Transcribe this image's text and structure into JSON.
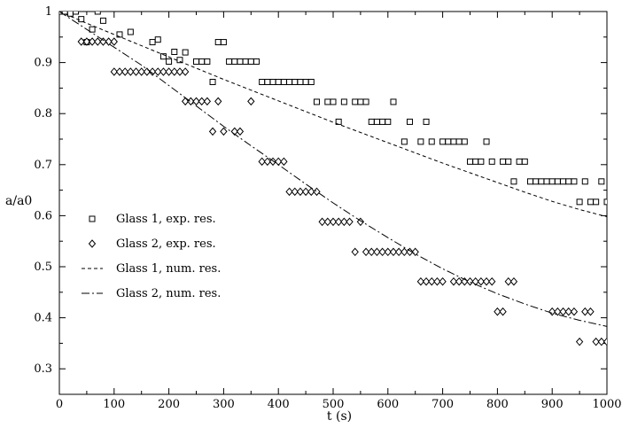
{
  "chart_data": {
    "type": "scatter",
    "xlabel": "t (s)",
    "ylabel": "a/a0",
    "xlim": [
      0,
      1000
    ],
    "ylim": [
      0.25,
      1.0
    ],
    "x_ticks": [
      0,
      100,
      200,
      300,
      400,
      500,
      600,
      700,
      800,
      900,
      1000
    ],
    "y_ticks": [
      0.3,
      0.4,
      0.5,
      0.6,
      0.7,
      0.8,
      0.9,
      1.0
    ],
    "x_tick_labels": [
      "0",
      "100",
      "200",
      "300",
      "400",
      "500",
      "600",
      "700",
      "800",
      "900",
      "1000"
    ],
    "y_tick_labels": [
      "0.3",
      "0.4",
      "0.5",
      "0.6",
      "0.7",
      "0.8",
      "0.9",
      "1"
    ],
    "grid": false,
    "legend_position": "left",
    "series": [
      {
        "name": "Glass 1, exp. res.",
        "kind": "markers",
        "marker": "square",
        "points": [
          [
            0,
            1.0
          ],
          [
            10,
            1.0
          ],
          [
            20,
            0.996
          ],
          [
            30,
            1.0
          ],
          [
            40,
            0.985
          ],
          [
            50,
            0.94
          ],
          [
            60,
            0.965
          ],
          [
            70,
            1.0
          ],
          [
            80,
            0.982
          ],
          [
            110,
            0.955
          ],
          [
            130,
            0.96
          ],
          [
            170,
            0.94
          ],
          [
            180,
            0.945
          ],
          [
            190,
            0.912
          ],
          [
            200,
            0.902
          ],
          [
            210,
            0.921
          ],
          [
            220,
            0.905
          ],
          [
            230,
            0.92
          ],
          [
            250,
            0.902
          ],
          [
            260,
            0.902
          ],
          [
            270,
            0.902
          ],
          [
            280,
            0.862
          ],
          [
            290,
            0.94
          ],
          [
            300,
            0.94
          ],
          [
            310,
            0.902
          ],
          [
            320,
            0.902
          ],
          [
            330,
            0.902
          ],
          [
            340,
            0.902
          ],
          [
            350,
            0.902
          ],
          [
            360,
            0.902
          ],
          [
            370,
            0.862
          ],
          [
            380,
            0.862
          ],
          [
            390,
            0.862
          ],
          [
            400,
            0.862
          ],
          [
            410,
            0.862
          ],
          [
            420,
            0.862
          ],
          [
            430,
            0.862
          ],
          [
            440,
            0.862
          ],
          [
            450,
            0.862
          ],
          [
            460,
            0.862
          ],
          [
            470,
            0.823
          ],
          [
            490,
            0.823
          ],
          [
            500,
            0.823
          ],
          [
            510,
            0.784
          ],
          [
            520,
            0.823
          ],
          [
            540,
            0.823
          ],
          [
            550,
            0.823
          ],
          [
            560,
            0.823
          ],
          [
            570,
            0.784
          ],
          [
            580,
            0.784
          ],
          [
            590,
            0.784
          ],
          [
            600,
            0.784
          ],
          [
            610,
            0.823
          ],
          [
            630,
            0.745
          ],
          [
            640,
            0.784
          ],
          [
            660,
            0.745
          ],
          [
            670,
            0.784
          ],
          [
            680,
            0.745
          ],
          [
            700,
            0.745
          ],
          [
            710,
            0.745
          ],
          [
            720,
            0.745
          ],
          [
            730,
            0.745
          ],
          [
            740,
            0.745
          ],
          [
            750,
            0.706
          ],
          [
            760,
            0.706
          ],
          [
            770,
            0.706
          ],
          [
            780,
            0.745
          ],
          [
            790,
            0.706
          ],
          [
            810,
            0.706
          ],
          [
            820,
            0.706
          ],
          [
            830,
            0.667
          ],
          [
            840,
            0.706
          ],
          [
            850,
            0.706
          ],
          [
            860,
            0.667
          ],
          [
            870,
            0.667
          ],
          [
            880,
            0.667
          ],
          [
            890,
            0.667
          ],
          [
            900,
            0.667
          ],
          [
            910,
            0.667
          ],
          [
            920,
            0.667
          ],
          [
            930,
            0.667
          ],
          [
            940,
            0.667
          ],
          [
            950,
            0.627
          ],
          [
            960,
            0.667
          ],
          [
            970,
            0.627
          ],
          [
            980,
            0.627
          ],
          [
            990,
            0.667
          ],
          [
            1000,
            0.627
          ]
        ]
      },
      {
        "name": "Glass 2, exp. res.",
        "kind": "markers",
        "marker": "diamond",
        "points": [
          [
            40,
            0.941
          ],
          [
            50,
            0.941
          ],
          [
            60,
            0.941
          ],
          [
            70,
            0.941
          ],
          [
            80,
            0.941
          ],
          [
            90,
            0.941
          ],
          [
            100,
            0.941
          ],
          [
            100,
            0.882
          ],
          [
            110,
            0.882
          ],
          [
            120,
            0.882
          ],
          [
            130,
            0.882
          ],
          [
            140,
            0.882
          ],
          [
            150,
            0.882
          ],
          [
            160,
            0.882
          ],
          [
            170,
            0.882
          ],
          [
            180,
            0.882
          ],
          [
            190,
            0.882
          ],
          [
            200,
            0.882
          ],
          [
            210,
            0.882
          ],
          [
            220,
            0.882
          ],
          [
            230,
            0.882
          ],
          [
            230,
            0.824
          ],
          [
            240,
            0.824
          ],
          [
            250,
            0.824
          ],
          [
            260,
            0.824
          ],
          [
            270,
            0.824
          ],
          [
            280,
            0.765
          ],
          [
            290,
            0.824
          ],
          [
            300,
            0.765
          ],
          [
            320,
            0.765
          ],
          [
            330,
            0.765
          ],
          [
            350,
            0.824
          ],
          [
            370,
            0.706
          ],
          [
            380,
            0.706
          ],
          [
            390,
            0.706
          ],
          [
            400,
            0.706
          ],
          [
            410,
            0.706
          ],
          [
            420,
            0.647
          ],
          [
            430,
            0.647
          ],
          [
            440,
            0.647
          ],
          [
            450,
            0.647
          ],
          [
            460,
            0.647
          ],
          [
            470,
            0.647
          ],
          [
            480,
            0.588
          ],
          [
            490,
            0.588
          ],
          [
            500,
            0.588
          ],
          [
            510,
            0.588
          ],
          [
            520,
            0.588
          ],
          [
            530,
            0.588
          ],
          [
            540,
            0.529
          ],
          [
            550,
            0.588
          ],
          [
            560,
            0.529
          ],
          [
            570,
            0.529
          ],
          [
            580,
            0.529
          ],
          [
            590,
            0.529
          ],
          [
            600,
            0.529
          ],
          [
            610,
            0.529
          ],
          [
            620,
            0.529
          ],
          [
            630,
            0.529
          ],
          [
            640,
            0.529
          ],
          [
            650,
            0.529
          ],
          [
            660,
            0.471
          ],
          [
            670,
            0.471
          ],
          [
            680,
            0.471
          ],
          [
            690,
            0.471
          ],
          [
            700,
            0.471
          ],
          [
            720,
            0.471
          ],
          [
            730,
            0.471
          ],
          [
            740,
            0.471
          ],
          [
            750,
            0.471
          ],
          [
            760,
            0.471
          ],
          [
            770,
            0.471
          ],
          [
            780,
            0.471
          ],
          [
            790,
            0.471
          ],
          [
            800,
            0.412
          ],
          [
            810,
            0.412
          ],
          [
            820,
            0.471
          ],
          [
            830,
            0.471
          ],
          [
            900,
            0.412
          ],
          [
            910,
            0.412
          ],
          [
            920,
            0.412
          ],
          [
            930,
            0.412
          ],
          [
            940,
            0.412
          ],
          [
            950,
            0.353
          ],
          [
            960,
            0.412
          ],
          [
            970,
            0.412
          ],
          [
            980,
            0.353
          ],
          [
            990,
            0.353
          ],
          [
            1000,
            0.353
          ]
        ]
      },
      {
        "name": "Glass 1, num. res.",
        "kind": "line",
        "dash": "dashed",
        "points": [
          [
            0,
            1.0
          ],
          [
            50,
            0.977
          ],
          [
            100,
            0.955
          ],
          [
            150,
            0.933
          ],
          [
            200,
            0.911
          ],
          [
            250,
            0.889
          ],
          [
            300,
            0.867
          ],
          [
            350,
            0.846
          ],
          [
            400,
            0.825
          ],
          [
            450,
            0.804
          ],
          [
            500,
            0.783
          ],
          [
            550,
            0.763
          ],
          [
            600,
            0.743
          ],
          [
            650,
            0.723
          ],
          [
            700,
            0.703
          ],
          [
            750,
            0.684
          ],
          [
            800,
            0.665
          ],
          [
            850,
            0.646
          ],
          [
            900,
            0.628
          ],
          [
            950,
            0.612
          ],
          [
            1000,
            0.598
          ]
        ]
      },
      {
        "name": "Glass 2, num. res.",
        "kind": "line",
        "dash": "dash-dot",
        "points": [
          [
            0,
            1.0
          ],
          [
            50,
            0.965
          ],
          [
            100,
            0.93
          ],
          [
            150,
            0.895
          ],
          [
            200,
            0.855
          ],
          [
            250,
            0.815
          ],
          [
            300,
            0.775
          ],
          [
            350,
            0.737
          ],
          [
            400,
            0.7
          ],
          [
            450,
            0.662
          ],
          [
            500,
            0.625
          ],
          [
            550,
            0.59
          ],
          [
            600,
            0.557
          ],
          [
            650,
            0.525
          ],
          [
            700,
            0.496
          ],
          [
            750,
            0.47
          ],
          [
            800,
            0.447
          ],
          [
            850,
            0.427
          ],
          [
            900,
            0.409
          ],
          [
            950,
            0.395
          ],
          [
            1000,
            0.383
          ]
        ]
      }
    ]
  }
}
